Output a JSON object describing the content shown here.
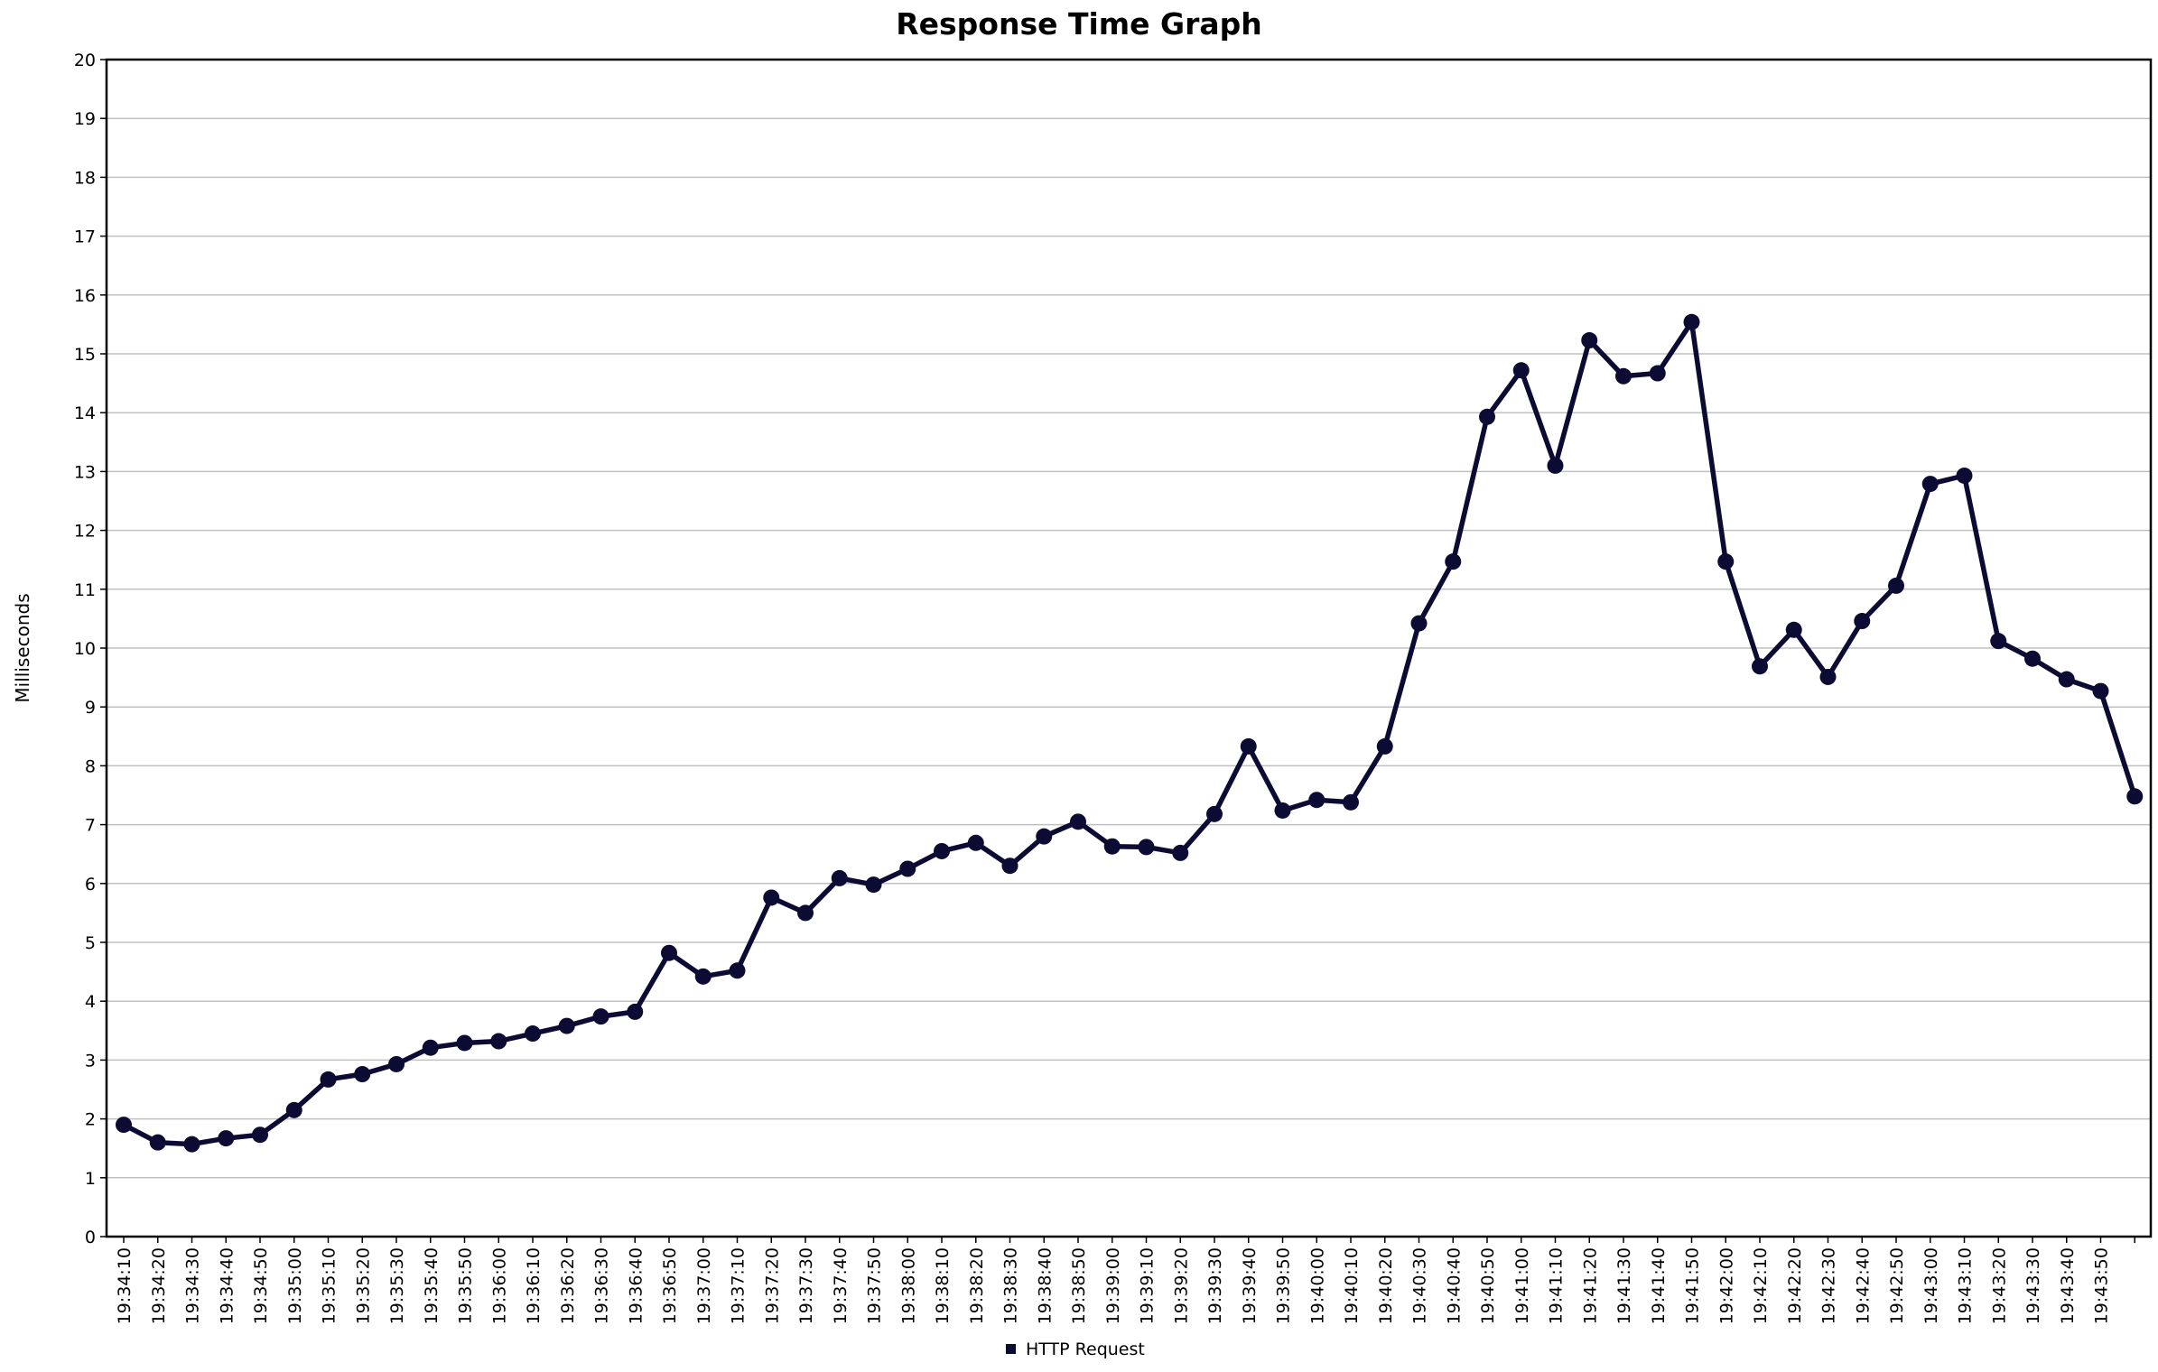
{
  "chart_data": {
    "type": "line",
    "title": "Response Time Graph",
    "xlabel": "",
    "ylabel": "Milliseconds",
    "ylim": [
      0,
      20
    ],
    "y_ticks": [
      0,
      1,
      2,
      3,
      4,
      5,
      6,
      7,
      8,
      9,
      10,
      11,
      12,
      13,
      14,
      15,
      16,
      17,
      18,
      19,
      20
    ],
    "grid": true,
    "legend_position": "bottom-center",
    "line_color": "#0b0b33",
    "categories": [
      "19:34:10",
      "19:34:20",
      "19:34:30",
      "19:34:40",
      "19:34:50",
      "19:35:00",
      "19:35:10",
      "19:35:20",
      "19:35:30",
      "19:35:40",
      "19:35:50",
      "19:36:00",
      "19:36:10",
      "19:36:20",
      "19:36:30",
      "19:36:40",
      "19:36:50",
      "19:37:00",
      "19:37:10",
      "19:37:20",
      "19:37:30",
      "19:37:40",
      "19:37:50",
      "19:38:00",
      "19:38:10",
      "19:38:20",
      "19:38:30",
      "19:38:40",
      "19:38:50",
      "19:39:00",
      "19:39:10",
      "19:39:20",
      "19:39:30",
      "19:39:40",
      "19:39:50",
      "19:40:00",
      "19:40:10",
      "19:40:20",
      "19:40:30",
      "19:40:40",
      "19:40:50",
      "19:41:00",
      "19:41:10",
      "19:41:20",
      "19:41:30",
      "19:41:40",
      "19:41:50",
      "19:42:00",
      "19:42:10",
      "19:42:20",
      "19:42:30",
      "19:42:40",
      "19:42:50",
      "19:43:00",
      "19:43:10",
      "19:43:20",
      "19:43:30",
      "19:43:40",
      "19:43:50",
      ""
    ],
    "series": [
      {
        "name": "HTTP Request",
        "values": [
          1.9,
          1.6,
          1.57,
          1.67,
          1.73,
          2.15,
          2.67,
          2.76,
          2.93,
          3.21,
          3.29,
          3.32,
          3.45,
          3.58,
          3.74,
          3.82,
          4.82,
          4.42,
          4.52,
          5.76,
          5.5,
          6.09,
          5.98,
          6.25,
          6.55,
          6.69,
          6.3,
          6.8,
          7.05,
          6.63,
          6.62,
          6.52,
          7.18,
          8.33,
          7.24,
          7.42,
          7.38,
          8.33,
          10.42,
          11.47,
          13.93,
          14.72,
          13.1,
          15.23,
          14.62,
          14.67,
          15.54,
          11.47,
          9.69,
          10.31,
          9.51,
          10.46,
          11.06,
          12.79,
          12.93,
          10.12,
          9.82,
          9.47,
          9.27,
          7.48
        ]
      }
    ]
  }
}
